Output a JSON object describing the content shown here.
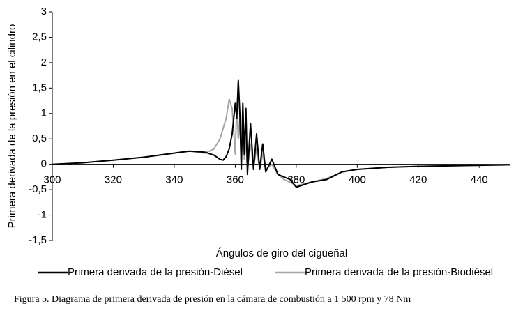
{
  "chart_data": {
    "type": "line",
    "xlabel": "Ángulos de giro del cigüeñal",
    "ylabel": "Primera derivada de la presión en el cilindro",
    "caption": "Figura 5. Diagrama de primera derivada de presión en la cámara de combustión a 1 500 rpm y 78 Nm",
    "x": [
      300,
      310,
      320,
      330,
      340,
      345,
      350,
      353,
      355,
      356,
      357,
      358,
      359,
      360,
      360.5,
      361,
      361.5,
      362,
      362.5,
      363,
      363.5,
      364,
      365,
      366,
      367,
      368,
      369,
      370,
      372,
      374,
      376,
      378,
      380,
      385,
      390,
      395,
      400,
      410,
      420,
      430,
      440,
      450
    ],
    "series": [
      {
        "name": "Primera derivada de la presión-Diésel",
        "color": "#000000",
        "values": [
          0,
          0.03,
          0.08,
          0.14,
          0.22,
          0.26,
          0.24,
          0.18,
          0.1,
          0.08,
          0.15,
          0.3,
          0.6,
          1.2,
          0.9,
          1.65,
          1.0,
          -0.1,
          1.2,
          0.2,
          1.1,
          -0.2,
          0.8,
          -0.1,
          0.6,
          -0.1,
          0.4,
          -0.15,
          0.1,
          -0.2,
          -0.25,
          -0.3,
          -0.45,
          -0.35,
          -0.3,
          -0.15,
          -0.1,
          -0.06,
          -0.04,
          -0.03,
          -0.02,
          -0.01
        ]
      },
      {
        "name": "Primera derivada de la presión-Biodiésel",
        "color": "#a6a6a6",
        "values": [
          0,
          0.03,
          0.08,
          0.14,
          0.22,
          0.26,
          0.22,
          0.3,
          0.5,
          0.7,
          0.9,
          1.28,
          1.1,
          0.2,
          1.2,
          0.5,
          0.9,
          0.1,
          0.6,
          0.1,
          0.5,
          -0.1,
          0.4,
          -0.05,
          0.3,
          -0.1,
          0.2,
          -0.1,
          0,
          -0.2,
          -0.3,
          -0.35,
          -0.42,
          -0.35,
          -0.28,
          -0.15,
          -0.1,
          -0.06,
          -0.04,
          -0.03,
          -0.02,
          -0.01
        ]
      }
    ],
    "xlim": [
      300,
      450
    ],
    "xticks": [
      300,
      320,
      340,
      360,
      380,
      400,
      420,
      440
    ],
    "ylim": [
      -1.5,
      3
    ],
    "yticks": [
      {
        "value": -1.5,
        "label": "-1,5"
      },
      -1,
      {
        "value": -0.5,
        "label": "-0,5"
      },
      0,
      {
        "value": 0.5,
        "label": "0,5"
      },
      1,
      {
        "value": 1.5,
        "label": "1,5"
      },
      2,
      {
        "value": 2.5,
        "label": "2,5"
      },
      3
    ]
  }
}
